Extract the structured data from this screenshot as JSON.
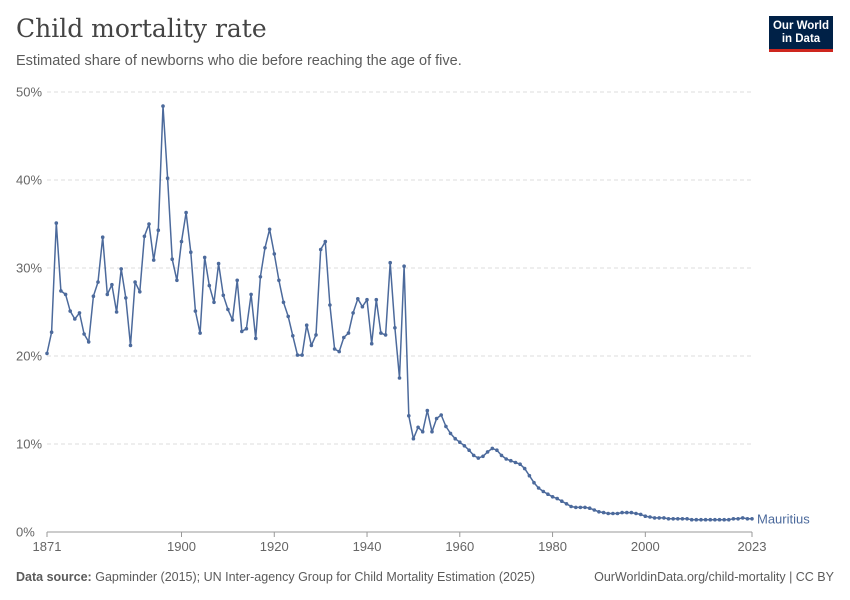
{
  "header": {
    "title": "Child mortality rate",
    "subtitle": "Estimated share of newborns who die before reaching the age of five."
  },
  "logo": {
    "line1": "Our World",
    "line2": "in Data"
  },
  "footer": {
    "source_label": "Data source:",
    "source_text": "Gapminder (2015); UN Inter-agency Group for Child Mortality Estimation (2025)",
    "link_text": "OurWorldinData.org/child-mortality | CC BY"
  },
  "colors": {
    "series": "#4c6a9c",
    "grid": "#dddddd",
    "axis": "#999999",
    "text": "#666666"
  },
  "chart_data": {
    "type": "line",
    "title": "Child mortality rate",
    "xlabel": "",
    "ylabel": "",
    "xlim": [
      1871,
      2023
    ],
    "ylim": [
      0,
      50
    ],
    "x_ticks": [
      {
        "value": 1871,
        "label": "1871"
      },
      {
        "value": 1900,
        "label": "1900"
      },
      {
        "value": 1920,
        "label": "1920"
      },
      {
        "value": 1940,
        "label": "1940"
      },
      {
        "value": 1960,
        "label": "1960"
      },
      {
        "value": 1980,
        "label": "1980"
      },
      {
        "value": 2000,
        "label": "2000"
      },
      {
        "value": 2023,
        "label": "2023"
      }
    ],
    "y_ticks": [
      {
        "value": 0,
        "label": "0%"
      },
      {
        "value": 10,
        "label": "10%"
      },
      {
        "value": 20,
        "label": "20%"
      },
      {
        "value": 30,
        "label": "30%"
      },
      {
        "value": 40,
        "label": "40%"
      },
      {
        "value": 50,
        "label": "50%"
      }
    ],
    "grid": true,
    "series": [
      {
        "name": "Mauritius",
        "x": [
          1871,
          1872,
          1873,
          1874,
          1875,
          1876,
          1877,
          1878,
          1879,
          1880,
          1881,
          1882,
          1883,
          1884,
          1885,
          1886,
          1887,
          1888,
          1889,
          1890,
          1891,
          1892,
          1893,
          1894,
          1895,
          1896,
          1897,
          1898,
          1899,
          1900,
          1901,
          1902,
          1903,
          1904,
          1905,
          1906,
          1907,
          1908,
          1909,
          1910,
          1911,
          1912,
          1913,
          1914,
          1915,
          1916,
          1917,
          1918,
          1919,
          1920,
          1921,
          1922,
          1923,
          1924,
          1925,
          1926,
          1927,
          1928,
          1929,
          1930,
          1931,
          1932,
          1933,
          1934,
          1935,
          1936,
          1937,
          1938,
          1939,
          1940,
          1941,
          1942,
          1943,
          1944,
          1945,
          1946,
          1947,
          1948,
          1949,
          1950,
          1951,
          1952,
          1953,
          1954,
          1955,
          1956,
          1957,
          1958,
          1959,
          1960,
          1961,
          1962,
          1963,
          1964,
          1965,
          1966,
          1967,
          1968,
          1969,
          1970,
          1971,
          1972,
          1973,
          1974,
          1975,
          1976,
          1977,
          1978,
          1979,
          1980,
          1981,
          1982,
          1983,
          1984,
          1985,
          1986,
          1987,
          1988,
          1989,
          1990,
          1991,
          1992,
          1993,
          1994,
          1995,
          1996,
          1997,
          1998,
          1999,
          2000,
          2001,
          2002,
          2003,
          2004,
          2005,
          2006,
          2007,
          2008,
          2009,
          2010,
          2011,
          2012,
          2013,
          2014,
          2015,
          2016,
          2017,
          2018,
          2019,
          2020,
          2021,
          2022,
          2023
        ],
        "values": [
          20.3,
          22.7,
          35.1,
          27.4,
          27.0,
          25.1,
          24.2,
          24.9,
          22.5,
          21.6,
          26.8,
          28.4,
          33.5,
          27.0,
          28.1,
          25.0,
          29.9,
          26.6,
          21.2,
          28.4,
          27.3,
          33.6,
          35.0,
          30.9,
          34.3,
          48.4,
          40.2,
          31.0,
          28.6,
          33.0,
          36.3,
          31.8,
          25.1,
          22.6,
          31.2,
          28.0,
          26.1,
          30.5,
          26.9,
          25.3,
          24.1,
          28.6,
          22.8,
          23.1,
          27.0,
          22.0,
          29.0,
          32.3,
          34.4,
          31.6,
          28.6,
          26.1,
          24.5,
          22.3,
          20.1,
          20.1,
          23.5,
          21.2,
          22.4,
          32.1,
          33.0,
          25.8,
          20.8,
          20.5,
          22.1,
          22.6,
          24.9,
          26.5,
          25.6,
          26.4,
          21.4,
          26.4,
          22.6,
          22.4,
          30.6,
          23.2,
          17.5,
          30.2,
          13.2,
          10.6,
          11.9,
          11.4,
          13.8,
          11.4,
          12.9,
          13.3,
          12.0,
          11.2,
          10.6,
          10.2,
          9.8,
          9.3,
          8.7,
          8.4,
          8.6,
          9.1,
          9.5,
          9.3,
          8.7,
          8.3,
          8.1,
          7.9,
          7.7,
          7.2,
          6.4,
          5.6,
          5.0,
          4.6,
          4.3,
          4.0,
          3.8,
          3.5,
          3.2,
          2.9,
          2.8,
          2.8,
          2.8,
          2.7,
          2.5,
          2.3,
          2.2,
          2.1,
          2.1,
          2.1,
          2.2,
          2.2,
          2.2,
          2.1,
          2.0,
          1.8,
          1.7,
          1.6,
          1.6,
          1.6,
          1.5,
          1.5,
          1.5,
          1.5,
          1.5,
          1.4,
          1.4,
          1.4,
          1.4,
          1.4,
          1.4,
          1.4,
          1.4,
          1.4,
          1.5,
          1.5,
          1.6,
          1.5,
          1.5
        ]
      }
    ]
  }
}
